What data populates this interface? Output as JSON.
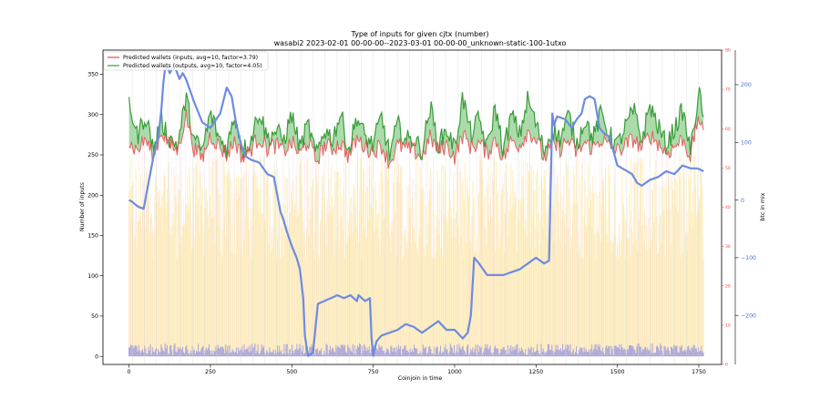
{
  "chart_data": {
    "type": "line",
    "title": "Type of inputs for given cjtx (number)",
    "subtitle": "wasabi2 2023-02-01 00-00-00--2023-03-01 00-00-00_unknown-static-100-1utxo",
    "xlabel": "Coinjoin in time",
    "ylabel": "Number of inputs",
    "y3label": "btc in mix",
    "xlim": [
      -80,
      1820
    ],
    "ylim": [
      -10,
      380
    ],
    "y2lim": [
      0,
      80
    ],
    "y3lim": [
      -285,
      260
    ],
    "x_ticks": [
      "0",
      "250",
      "500",
      "750",
      "1000",
      "1250",
      "1500",
      "1750"
    ],
    "y_ticks": [
      "0",
      "50",
      "100",
      "150",
      "200",
      "250",
      "300",
      "350"
    ],
    "y2_ticks": [
      "0",
      "10",
      "20",
      "30",
      "40",
      "50",
      "60",
      "70",
      "80"
    ],
    "y3_ticks": [
      "−200",
      "−100",
      "0",
      "100",
      "200"
    ],
    "legend_position": "upper-left",
    "grid": false,
    "colors": {
      "inputs": "#e8474b",
      "outputs": "#3a9c3a",
      "fill_green": "#8fcf8f",
      "btc": "#6d8be0",
      "fg_yellow": "#fde9a0",
      "fg_pink": "#f7c9c9",
      "fg_blue": "#8c8ce8",
      "right_axis": "#e8474b",
      "btc_axis": "#4a6fd0"
    },
    "series": [
      {
        "name": "Predicted wallets (inputs, avg=10, factor=3.79)",
        "role": "inputs_rolling",
        "x": [
          0,
          25,
          50,
          75,
          100,
          125,
          150,
          175,
          200,
          225,
          250,
          275,
          300,
          325,
          350,
          375,
          400,
          425,
          450,
          475,
          500,
          525,
          550,
          575,
          600,
          625,
          650,
          675,
          700,
          725,
          750,
          775,
          800,
          825,
          850,
          875,
          900,
          925,
          950,
          975,
          1000,
          1025,
          1050,
          1075,
          1100,
          1125,
          1150,
          1175,
          1200,
          1225,
          1250,
          1275,
          1300,
          1325,
          1350,
          1375,
          1400,
          1425,
          1450,
          1475,
          1500,
          1525,
          1550,
          1575,
          1600,
          1625,
          1650,
          1675,
          1700,
          1725,
          1750,
          1765
        ],
        "values": [
          265,
          255,
          270,
          248,
          280,
          262,
          255,
          300,
          258,
          245,
          275,
          262,
          250,
          268,
          245,
          258,
          272,
          258,
          262,
          255,
          265,
          250,
          268,
          242,
          262,
          258,
          265,
          248,
          270,
          260,
          255,
          262,
          240,
          262,
          258,
          255,
          248,
          272,
          255,
          262,
          248,
          275,
          260,
          265,
          252,
          270,
          245,
          268,
          262,
          280,
          270,
          245,
          262,
          258,
          268,
          252,
          265,
          258,
          270,
          260,
          255,
          262,
          270,
          258,
          275,
          265,
          252,
          260,
          270,
          248,
          300,
          270
        ]
      },
      {
        "name": "Predicted wallets (outputs, avg=10, factor=4.05)",
        "role": "outputs_rolling",
        "x": [
          0,
          25,
          50,
          75,
          100,
          125,
          150,
          175,
          200,
          225,
          250,
          275,
          300,
          325,
          350,
          375,
          400,
          425,
          450,
          475,
          500,
          525,
          550,
          575,
          600,
          625,
          650,
          675,
          700,
          725,
          750,
          775,
          800,
          825,
          850,
          875,
          900,
          925,
          950,
          975,
          1000,
          1025,
          1050,
          1075,
          1100,
          1125,
          1150,
          1175,
          1200,
          1225,
          1250,
          1275,
          1300,
          1325,
          1350,
          1375,
          1400,
          1425,
          1450,
          1475,
          1500,
          1525,
          1550,
          1575,
          1600,
          1625,
          1650,
          1675,
          1700,
          1725,
          1750,
          1765
        ],
        "values": [
          318,
          272,
          300,
          258,
          292,
          270,
          262,
          322,
          268,
          255,
          302,
          272,
          258,
          300,
          255,
          270,
          305,
          270,
          280,
          268,
          300,
          258,
          288,
          248,
          282,
          270,
          302,
          255,
          298,
          272,
          262,
          298,
          250,
          288,
          268,
          270,
          255,
          310,
          262,
          282,
          258,
          322,
          275,
          295,
          258,
          310,
          255,
          300,
          275,
          320,
          288,
          255,
          282,
          270,
          300,
          262,
          295,
          270,
          302,
          275,
          262,
          285,
          305,
          268,
          312,
          285,
          262,
          282,
          305,
          255,
          330,
          288
        ]
      },
      {
        "name": "",
        "role": "btc_in_mix",
        "axis": "btc in mix",
        "x": [
          0,
          10,
          20,
          30,
          45,
          60,
          75,
          90,
          100,
          105,
          110,
          115,
          120,
          125,
          135,
          145,
          155,
          165,
          175,
          200,
          225,
          250,
          280,
          300,
          315,
          330,
          345,
          360,
          375,
          400,
          425,
          445,
          455,
          465,
          475,
          485,
          500,
          515,
          525,
          535,
          540,
          550,
          565,
          580,
          600,
          620,
          640,
          660,
          680,
          700,
          705,
          725,
          740,
          745,
          750,
          760,
          775,
          800,
          825,
          850,
          875,
          900,
          925,
          950,
          975,
          1000,
          1025,
          1040,
          1050,
          1060,
          1075,
          1100,
          1125,
          1150,
          1175,
          1200,
          1225,
          1250,
          1275,
          1290,
          1300,
          1305,
          1315,
          1340,
          1360,
          1375,
          1390,
          1400,
          1415,
          1430,
          1445,
          1460,
          1475,
          1490,
          1500,
          1515,
          1530,
          1545,
          1560,
          1575,
          1600,
          1625,
          1650,
          1675,
          1700,
          1725,
          1745,
          1765
        ],
        "values": [
          0,
          -3,
          -8,
          -12,
          -15,
          30,
          75,
          110,
          160,
          200,
          225,
          230,
          228,
          220,
          230,
          225,
          210,
          220,
          210,
          170,
          135,
          125,
          150,
          195,
          180,
          130,
          95,
          75,
          70,
          65,
          45,
          40,
          10,
          -20,
          -35,
          -55,
          -80,
          -100,
          -120,
          -170,
          -235,
          -270,
          -265,
          -180,
          -175,
          -170,
          -165,
          -170,
          -165,
          -175,
          -165,
          -175,
          -170,
          -240,
          -270,
          -245,
          -235,
          -230,
          -225,
          -215,
          -220,
          -230,
          -220,
          -210,
          -225,
          -225,
          -240,
          -230,
          -200,
          -100,
          -110,
          -130,
          -130,
          -130,
          -125,
          -120,
          -110,
          -100,
          -110,
          -105,
          150,
          130,
          145,
          140,
          125,
          140,
          150,
          175,
          180,
          175,
          125,
          115,
          110,
          80,
          60,
          55,
          50,
          45,
          30,
          25,
          35,
          40,
          50,
          45,
          60,
          55,
          55,
          50
        ]
      }
    ]
  }
}
